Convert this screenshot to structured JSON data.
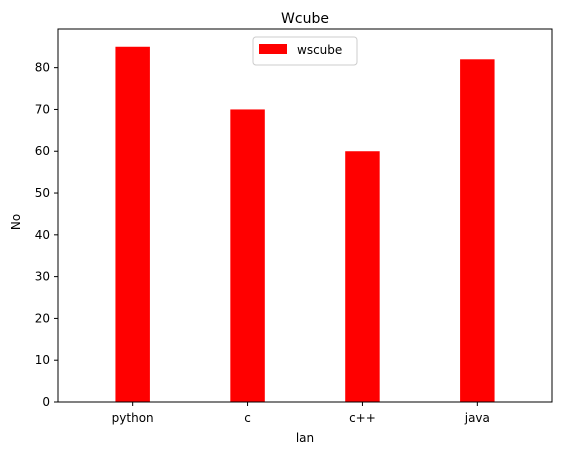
{
  "chart_data": {
    "type": "bar",
    "title": "Wcube",
    "xlabel": "lan",
    "ylabel": "No",
    "categories": [
      "python",
      "c",
      "c++",
      "java"
    ],
    "series": [
      {
        "name": "wscube",
        "values": [
          85,
          70,
          60,
          82
        ],
        "color": "#ff0000"
      }
    ],
    "ylim": [
      0,
      89.25
    ],
    "yticks": [
      0,
      10,
      20,
      30,
      40,
      50,
      60,
      70,
      80
    ],
    "grid": false,
    "legend": "upper center"
  }
}
